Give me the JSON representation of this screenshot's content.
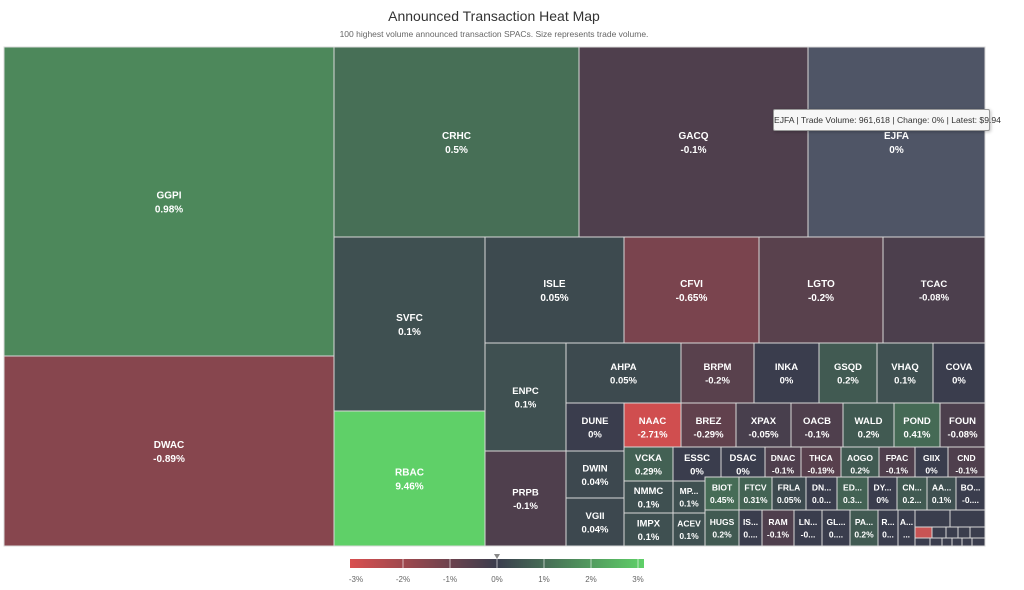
{
  "chart_data": {
    "type": "treemap",
    "title": "Announced Transaction Heat Map",
    "subtitle": "100 highest volume announced transaction SPACs. Size represents trade volume.",
    "color_scale": {
      "stops": [
        "#d94f4f",
        "#3a3d4d",
        "#5fd068"
      ],
      "legend_ticks": [
        "-3%",
        "-2%",
        "-1%",
        "0%",
        "1%",
        "2%",
        "3%"
      ]
    },
    "tiles": [
      {
        "ticker": "GGPI",
        "change_pct": 0.98,
        "label": "0.98%"
      },
      {
        "ticker": "DWAC",
        "change_pct": -0.89,
        "label": "-0.89%"
      },
      {
        "ticker": "CRHC",
        "change_pct": 0.5,
        "label": "0.5%"
      },
      {
        "ticker": "GACQ",
        "change_pct": -0.1,
        "label": "-0.1%"
      },
      {
        "ticker": "EJFA",
        "change_pct": 0,
        "label": "0%"
      },
      {
        "ticker": "SVFC",
        "change_pct": 0.1,
        "label": "0.1%"
      },
      {
        "ticker": "RBAC",
        "change_pct": 9.46,
        "label": "9.46%"
      },
      {
        "ticker": "ISLE",
        "change_pct": 0.05,
        "label": "0.05%"
      },
      {
        "ticker": "CFVI",
        "change_pct": -0.65,
        "label": "-0.65%"
      },
      {
        "ticker": "LGTO",
        "change_pct": -0.2,
        "label": "-0.2%"
      },
      {
        "ticker": "TCAC",
        "change_pct": -0.08,
        "label": "-0.08%"
      },
      {
        "ticker": "ENPC",
        "change_pct": 0.1,
        "label": "0.1%"
      },
      {
        "ticker": "PRPB",
        "change_pct": -0.1,
        "label": "-0.1%"
      },
      {
        "ticker": "AHPA",
        "change_pct": 0.05,
        "label": "0.05%"
      },
      {
        "ticker": "BRPM",
        "change_pct": -0.2,
        "label": "-0.2%"
      },
      {
        "ticker": "INKA",
        "change_pct": 0,
        "label": "0%"
      },
      {
        "ticker": "GSQD",
        "change_pct": 0.2,
        "label": "0.2%"
      },
      {
        "ticker": "VHAQ",
        "change_pct": 0.1,
        "label": "0.1%"
      },
      {
        "ticker": "COVA",
        "change_pct": 0,
        "label": "0%"
      },
      {
        "ticker": "DUNE",
        "change_pct": 0,
        "label": "0%"
      },
      {
        "ticker": "NAAC",
        "change_pct": -2.71,
        "label": "-2.71%"
      },
      {
        "ticker": "BREZ",
        "change_pct": -0.29,
        "label": "-0.29%"
      },
      {
        "ticker": "XPAX",
        "change_pct": -0.05,
        "label": "-0.05%"
      },
      {
        "ticker": "OACB",
        "change_pct": -0.1,
        "label": "-0.1%"
      },
      {
        "ticker": "WALD",
        "change_pct": 0.2,
        "label": "0.2%"
      },
      {
        "ticker": "POND",
        "change_pct": 0.41,
        "label": "0.41%"
      },
      {
        "ticker": "FOUN",
        "change_pct": -0.08,
        "label": "-0.08%"
      },
      {
        "ticker": "DWIN",
        "change_pct": 0.04,
        "label": "0.04%"
      },
      {
        "ticker": "VGII",
        "change_pct": 0.04,
        "label": "0.04%"
      },
      {
        "ticker": "VCKA",
        "change_pct": 0.29,
        "label": "0.29%"
      },
      {
        "ticker": "ESSC",
        "change_pct": 0,
        "label": "0%"
      },
      {
        "ticker": "DSAC",
        "change_pct": 0,
        "label": "0%"
      },
      {
        "ticker": "DNAC",
        "change_pct": -0.1,
        "label": "-0.1%"
      },
      {
        "ticker": "THCA",
        "change_pct": -0.19,
        "label": "-0.19%"
      },
      {
        "ticker": "AOGO",
        "change_pct": 0.2,
        "label": "0.2%"
      },
      {
        "ticker": "FPAC",
        "change_pct": -0.1,
        "label": "-0.1%"
      },
      {
        "ticker": "GIIX",
        "change_pct": 0,
        "label": "0%"
      },
      {
        "ticker": "CND",
        "change_pct": -0.1,
        "label": "-0.1%"
      },
      {
        "ticker": "NMMC",
        "change_pct": 0.1,
        "label": "0.1%"
      },
      {
        "ticker": "IMPX",
        "change_pct": 0.1,
        "label": "0.1%"
      },
      {
        "ticker": "MP...",
        "change_pct": 0.1,
        "label": "0.1%"
      },
      {
        "ticker": "ACEV",
        "change_pct": 0.1,
        "label": "0.1%"
      },
      {
        "ticker": "BIOT",
        "change_pct": 0.45,
        "label": "0.45%"
      },
      {
        "ticker": "FTCV",
        "change_pct": 0.31,
        "label": "0.31%"
      },
      {
        "ticker": "FRLA",
        "change_pct": 0.05,
        "label": "0.05%"
      },
      {
        "ticker": "DN...",
        "change_pct": 0,
        "label": "0.0..."
      },
      {
        "ticker": "ED...",
        "change_pct": 0.3,
        "label": "0.3..."
      },
      {
        "ticker": "DY...",
        "change_pct": 0,
        "label": "0%"
      },
      {
        "ticker": "CN...",
        "change_pct": 0.2,
        "label": "0.2..."
      },
      {
        "ticker": "AA...",
        "change_pct": 0.1,
        "label": "0.1%"
      },
      {
        "ticker": "BO...",
        "change_pct": 0,
        "label": "-0...."
      },
      {
        "ticker": "HUGS",
        "change_pct": 0.2,
        "label": "0.2%"
      },
      {
        "ticker": "IS...",
        "change_pct": 0,
        "label": "0...."
      },
      {
        "ticker": "RAM",
        "change_pct": -0.1,
        "label": "-0.1%"
      },
      {
        "ticker": "LN...",
        "change_pct": 0,
        "label": "-0..."
      },
      {
        "ticker": "GL...",
        "change_pct": 0,
        "label": "0...."
      },
      {
        "ticker": "PA...",
        "change_pct": 0.2,
        "label": "0.2%"
      },
      {
        "ticker": "R...",
        "change_pct": 0,
        "label": "0..."
      },
      {
        "ticker": "A...",
        "change_pct": 0,
        "label": "..."
      }
    ],
    "tooltip": {
      "text": "EJFA | Trade Volume: 961,618 | Change: 0% | Latest: $9.94"
    }
  }
}
